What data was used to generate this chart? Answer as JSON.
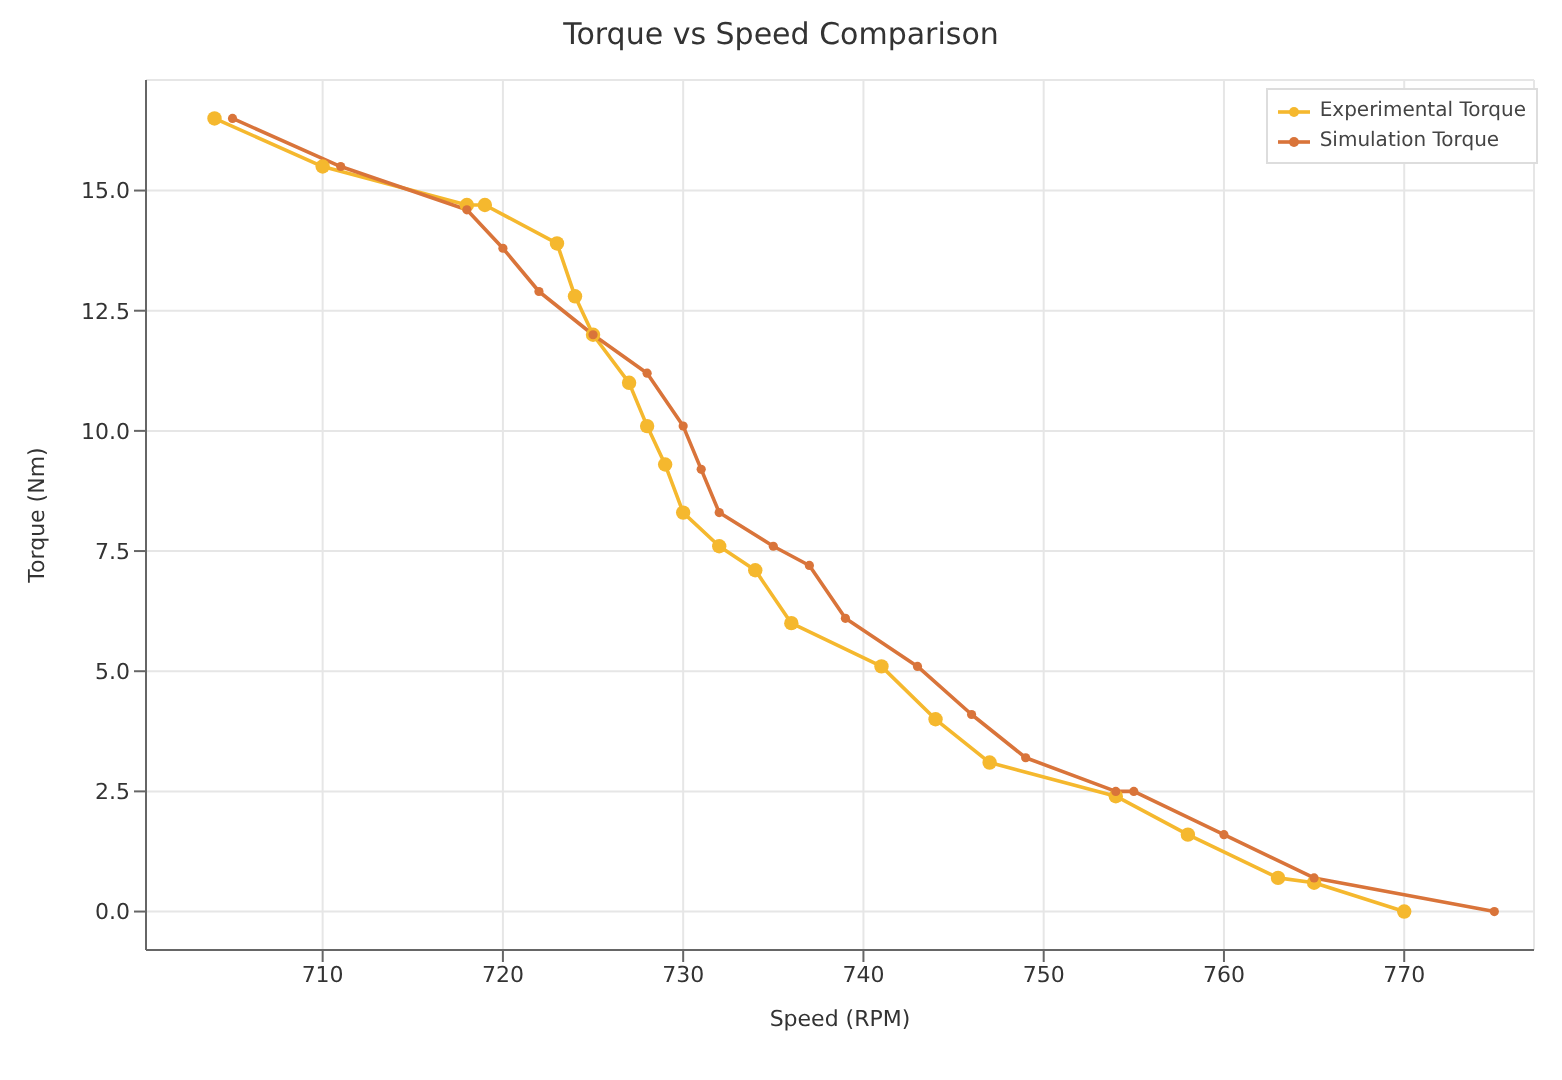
{
  "chart_data": {
    "type": "line",
    "title": "Torque vs Speed Comparison",
    "xlabel": "Speed (RPM)",
    "ylabel": "Torque (Nm)",
    "series": [
      {
        "name": "Experimental Torque",
        "color": "#f5b82e",
        "x": [
          704,
          710,
          718,
          719,
          723,
          724,
          725,
          727,
          728,
          729,
          730,
          732,
          734,
          736,
          741,
          744,
          747,
          754,
          758,
          763,
          765,
          770
        ],
        "values": [
          16.5,
          15.5,
          14.7,
          14.7,
          13.9,
          12.8,
          12.0,
          11.0,
          10.1,
          9.3,
          8.3,
          7.6,
          7.1,
          6.0,
          5.1,
          4.0,
          3.1,
          2.4,
          1.6,
          0.7,
          0.6,
          0.0
        ]
      },
      {
        "name": "Simulation Torque",
        "color": "#d9743a",
        "x": [
          705,
          711,
          718,
          720,
          722,
          725,
          728,
          730,
          731,
          732,
          735,
          737,
          739,
          743,
          746,
          749,
          754,
          755,
          760,
          765,
          775
        ],
        "values": [
          16.5,
          15.5,
          14.6,
          13.8,
          12.9,
          12.0,
          11.2,
          10.1,
          9.2,
          8.3,
          7.6,
          7.2,
          6.1,
          5.1,
          4.1,
          3.2,
          2.5,
          2.5,
          1.6,
          0.7,
          0.0
        ]
      }
    ],
    "xlim": [
      700.2,
      777.2
    ],
    "xticks": [
      710,
      720,
      730,
      740,
      750,
      760,
      770
    ],
    "ylim": [
      -0.8,
      17.3
    ],
    "yticks": [
      {
        "value": 0,
        "label": "0.0"
      },
      {
        "value": 2.5,
        "label": "2.5"
      },
      {
        "value": 5,
        "label": "5.0"
      },
      {
        "value": 7.5,
        "label": "7.5"
      },
      {
        "value": 10,
        "label": "10.0"
      },
      {
        "value": 12.5,
        "label": "12.5"
      },
      {
        "value": 15,
        "label": "15.0"
      }
    ],
    "grid": true,
    "legend": "top right",
    "marker": "circle",
    "line_style": "solid"
  }
}
